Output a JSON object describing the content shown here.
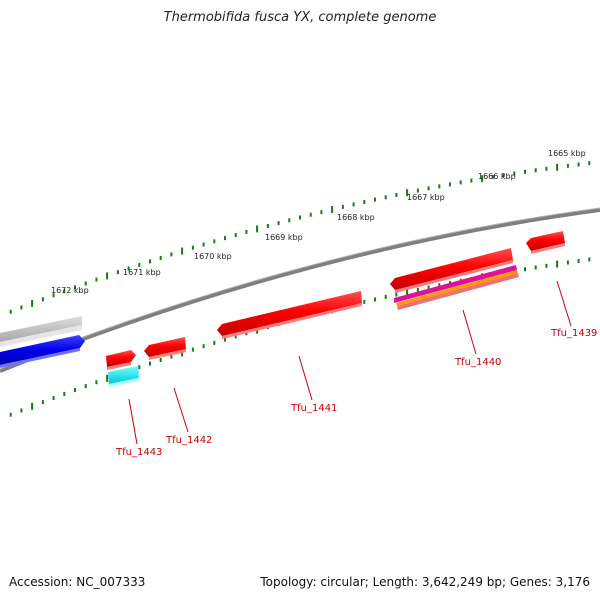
{
  "title": "Thermobifida fusca YX, complete genome",
  "footer": {
    "accession": "Accession: NC_007333",
    "summary": "Topology: circular; Length: 3,642,249 bp; Genes: 3,176"
  },
  "ticks": [
    "1665 kbp",
    "1666 kbp",
    "1667 kbp",
    "1668 kbp",
    "1669 kbp",
    "1670 kbp",
    "1671 kbp",
    "1672 kbp"
  ],
  "genes": [
    {
      "name": "Tfu_1439",
      "color": "#ff0000"
    },
    {
      "name": "Tfu_1440",
      "color": "#ff0000"
    },
    {
      "name": "Tfu_1441",
      "color": "#ff0000"
    },
    {
      "name": "Tfu_1442",
      "color": "#ff0000"
    },
    {
      "name": "Tfu_1443",
      "color": "#ff0000"
    }
  ],
  "colors": {
    "backbone": "#808080",
    "tick_marks": "#1a7a1a",
    "gene_label": "#cc0000",
    "forward_gene": "#ff0000",
    "reverse_gene": "#ff0000",
    "blue_feature": "#0000ee",
    "gray_feature": "#c0c0c0",
    "cyan_feature": "#00e5ee",
    "magenta_feature": "#e0109a",
    "orange_feature": "#ff9900",
    "pink_feature": "#ee7070"
  }
}
